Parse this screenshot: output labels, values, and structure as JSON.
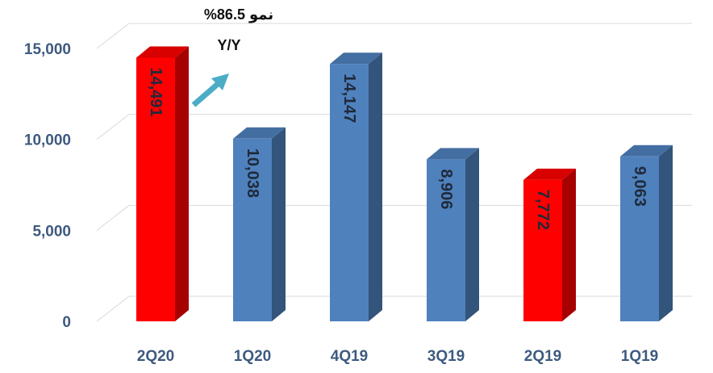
{
  "chart_data": {
    "type": "bar",
    "categories": [
      "2Q20",
      "1Q20",
      "4Q19",
      "3Q19",
      "2Q19",
      "1Q19"
    ],
    "values": [
      14491,
      10038,
      14147,
      8906,
      7772,
      9063
    ],
    "value_labels": [
      "14,491",
      "10,038",
      "14,147",
      "8,906",
      "7,772",
      "9,063"
    ],
    "y_ticks": [
      0,
      5000,
      10000,
      15000
    ],
    "y_tick_labels": [
      "0",
      "5,000",
      "10,000",
      "15,000"
    ],
    "ylim": [
      0,
      15000
    ],
    "grid": true,
    "bar_colors": [
      "#ff0000",
      "#4f81bd",
      "#4f81bd",
      "#4f81bd",
      "#ff0000",
      "#4f81bd"
    ],
    "highlight_color": "#ff0000",
    "default_color": "#4f81bd",
    "arrow_color": "#4bacc6",
    "annotation": {
      "line1": "نمو 86.5%",
      "line2": "Y/Y"
    }
  }
}
